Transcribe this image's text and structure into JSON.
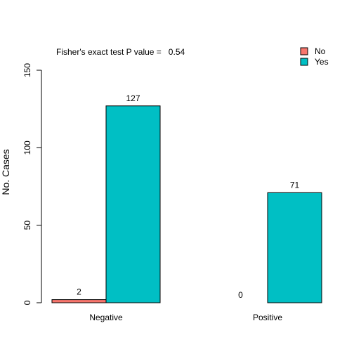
{
  "chart_data": {
    "type": "bar",
    "annotation": "Fisher's exact test P value =   0.54",
    "ylabel": "No. Cases",
    "xlabel": "",
    "categories": [
      "Negative",
      "Positive"
    ],
    "series": [
      {
        "name": "No",
        "values": [
          2,
          0
        ],
        "color": "#F8766D"
      },
      {
        "name": "Yes",
        "values": [
          127,
          71
        ],
        "color": "#00BFC4"
      }
    ],
    "yticks": [
      0,
      50,
      100,
      150
    ],
    "ylim": [
      0,
      150
    ],
    "legend_position": "top-right",
    "grid": false,
    "data_labels": true
  }
}
